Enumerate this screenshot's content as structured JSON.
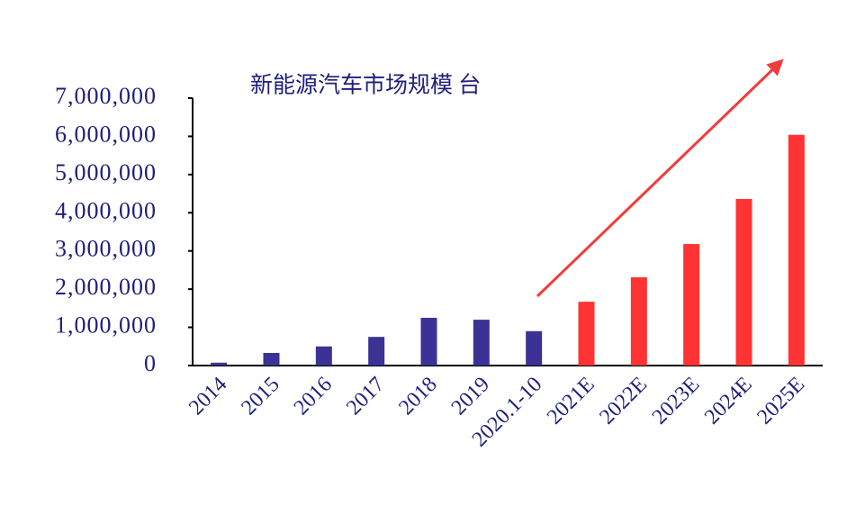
{
  "chart_data": {
    "type": "bar",
    "title": "新能源汽车市场规模 台",
    "categories": [
      "2014",
      "2015",
      "2016",
      "2017",
      "2018",
      "2019",
      "2020.1-10",
      "2021E",
      "2022E",
      "2023E",
      "2024E",
      "2025E"
    ],
    "values": [
      75000,
      330000,
      500000,
      750000,
      1250000,
      1200000,
      900000,
      1670000,
      2310000,
      3180000,
      4360000,
      6040000
    ],
    "colors": [
      "#3c3296",
      "#3c3296",
      "#3c3296",
      "#3c3296",
      "#3c3296",
      "#3c3296",
      "#3c3296",
      "#ff3333",
      "#ff3333",
      "#ff3333",
      "#ff3333",
      "#ff3333"
    ],
    "ylim": [
      0,
      7000000
    ],
    "yticks": [
      0,
      {
        "value": 1000000,
        "label": "1,000,000"
      },
      {
        "value": 2000000,
        "label": "2,000,000"
      },
      {
        "value": 3000000,
        "label": "3,000,000"
      },
      {
        "value": 4000000,
        "label": "4,000,000"
      },
      {
        "value": 5000000,
        "label": "5,000,000"
      },
      {
        "value": 6000000,
        "label": "6,000,000"
      },
      {
        "value": 7000000,
        "label": "7,000,000"
      }
    ],
    "grid": false
  }
}
